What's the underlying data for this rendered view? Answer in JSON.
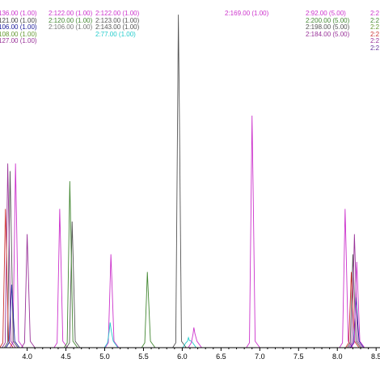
{
  "chart_data": {
    "type": "line",
    "x_ticks": [
      "4.0",
      "4.5",
      "5.0",
      "5.5",
      "6.0",
      "6.5",
      "7.0",
      "7.5",
      "8.0",
      "8.5"
    ],
    "xlim": [
      3.65,
      8.55
    ],
    "grid": false,
    "legend_labels": [
      {
        "text": "136.00 (1.00)",
        "color": "#cc33cc"
      },
      {
        "text": "121.00 (1.00)",
        "color": "#444444"
      },
      {
        "text": "106.00 (1.00)",
        "color": "#1a1a99"
      },
      {
        "text": "108.00 (1.00)",
        "color": "#669933"
      },
      {
        "text": "127.00 (1.00)",
        "color": "#993399"
      },
      {
        "text": "2:122.00 (1.00)",
        "color": "#cc33cc"
      },
      {
        "text": "2:120.00 (1.00)",
        "color": "#448833"
      },
      {
        "text": "2:106.00 (1.00)",
        "color": "#777777"
      },
      {
        "text": "2:122.00 (1.00)",
        "color": "#cc33cc"
      },
      {
        "text": "2:123.00 (1.00)",
        "color": "#555555"
      },
      {
        "text": "2:143.00 (1.00)",
        "color": "#555555"
      },
      {
        "text": "2:77.00 (1.00)",
        "color": "#22cccc"
      },
      {
        "text": "2:169.00 (1.00)",
        "color": "#cc33cc"
      },
      {
        "text": "2:92.00 (5.00)",
        "color": "#cc33cc"
      },
      {
        "text": "2:200.00 (5.00)",
        "color": "#448833"
      },
      {
        "text": "2:198.00 (5.00)",
        "color": "#555555"
      },
      {
        "text": "2:184.00 (5.00)",
        "color": "#993399"
      },
      {
        "text": "2:2",
        "color": "#cc33cc"
      },
      {
        "text": "2:2",
        "color": "#448833"
      },
      {
        "text": "2:2",
        "color": "#669933"
      },
      {
        "text": "2:2",
        "color": "#cc3333"
      },
      {
        "text": "2:2",
        "color": "#993399"
      },
      {
        "text": "2:2",
        "color": "#663399"
      }
    ],
    "series": [
      {
        "color": "#cc33cc",
        "peaks": [
          [
            3.85,
            0.73
          ],
          [
            4.42,
            0.55
          ],
          [
            5.08,
            0.37
          ],
          [
            6.9,
            0.92
          ],
          [
            8.1,
            0.55
          ]
        ]
      },
      {
        "color": "#555555",
        "peaks": [
          [
            3.78,
            0.7
          ],
          [
            4.58,
            0.5
          ],
          [
            5.95,
            1.32
          ],
          [
            8.2,
            0.37
          ]
        ]
      },
      {
        "color": "#448833",
        "peaks": [
          [
            4.55,
            0.66
          ],
          [
            5.55,
            0.3
          ]
        ]
      },
      {
        "color": "#993399",
        "peaks": [
          [
            3.75,
            0.73
          ],
          [
            4.0,
            0.45
          ],
          [
            8.22,
            0.45
          ]
        ]
      },
      {
        "color": "#cc3333",
        "peaks": [
          [
            3.72,
            0.55
          ],
          [
            8.18,
            0.3
          ]
        ]
      },
      {
        "color": "#22cccc",
        "peaks": [
          [
            5.07,
            0.1
          ],
          [
            6.08,
            0.04
          ]
        ]
      },
      {
        "color": "#1a1a99",
        "peaks": [
          [
            3.8,
            0.25
          ],
          [
            8.24,
            0.2
          ]
        ]
      },
      {
        "color": "#cc33cc",
        "peaks": [
          [
            6.15,
            0.08
          ],
          [
            8.25,
            0.34
          ]
        ]
      }
    ]
  }
}
